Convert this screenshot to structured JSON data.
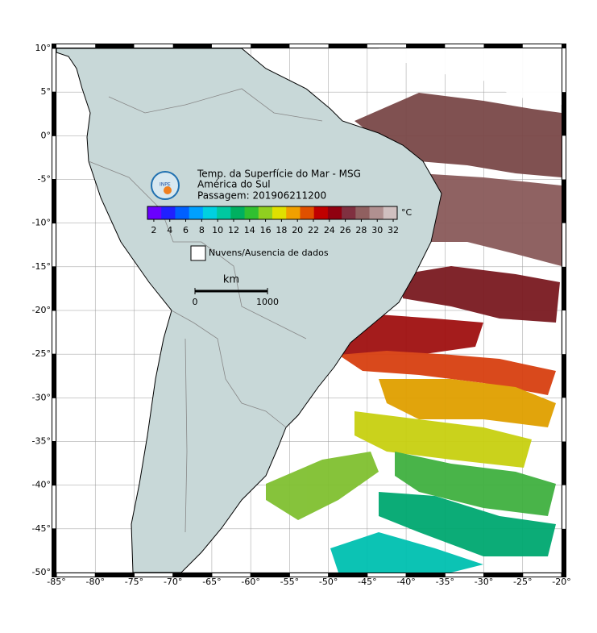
{
  "map": {
    "title_lines": [
      "Temp. da Superfície do Mar - MSG",
      "América do Sul",
      "Passagem: 201906211200"
    ],
    "logo": "INPE",
    "xlim": [
      -85,
      -20
    ],
    "ylim": [
      -50,
      10
    ],
    "xticks": [
      {
        "value": -85,
        "label": "-85°"
      },
      {
        "value": -80,
        "label": "-80°"
      },
      {
        "value": -75,
        "label": "-75°"
      },
      {
        "value": -70,
        "label": "-70°"
      },
      {
        "value": -65,
        "label": "-65°"
      },
      {
        "value": -60,
        "label": "-60°"
      },
      {
        "value": -55,
        "label": "-55°"
      },
      {
        "value": -50,
        "label": "-50°"
      },
      {
        "value": -45,
        "label": "-45°"
      },
      {
        "value": -40,
        "label": "-40°"
      },
      {
        "value": -35,
        "label": "-35°"
      },
      {
        "value": -30,
        "label": "-30°"
      },
      {
        "value": -25,
        "label": "-25°"
      },
      {
        "value": -20,
        "label": "-20°"
      }
    ],
    "yticks": [
      {
        "value": 10,
        "label": "10°"
      },
      {
        "value": 5,
        "label": "5°"
      },
      {
        "value": 0,
        "label": "0°"
      },
      {
        "value": -5,
        "label": "-5°"
      },
      {
        "value": -10,
        "label": "-10°"
      },
      {
        "value": -15,
        "label": "-15°"
      },
      {
        "value": -20,
        "label": "-20°"
      },
      {
        "value": -25,
        "label": "-25°"
      },
      {
        "value": -30,
        "label": "-30°"
      },
      {
        "value": -35,
        "label": "-35°"
      },
      {
        "value": -40,
        "label": "-40°"
      },
      {
        "value": -45,
        "label": "-45°"
      },
      {
        "value": -50,
        "label": "-50°"
      }
    ],
    "grid": true,
    "colorbar": {
      "lim": [
        1.2,
        32.5
      ],
      "ticks": [
        2,
        4,
        6,
        8,
        10,
        12,
        14,
        16,
        18,
        20,
        22,
        24,
        26,
        28,
        30,
        32
      ],
      "unit": "°C",
      "colors": [
        "#6a00ff",
        "#2020ff",
        "#0060ff",
        "#00a0ff",
        "#00d0e0",
        "#00c8a0",
        "#00b060",
        "#30c030",
        "#90d020",
        "#e0e000",
        "#f0a000",
        "#e05000",
        "#c00000",
        "#900010",
        "#803040",
        "#906060",
        "#b09090",
        "#d0c0c0"
      ]
    },
    "legend": "Nuvens/Ausencia de dados",
    "scale_bar": {
      "unit": "km",
      "ticks": [
        0,
        1000
      ]
    }
  }
}
